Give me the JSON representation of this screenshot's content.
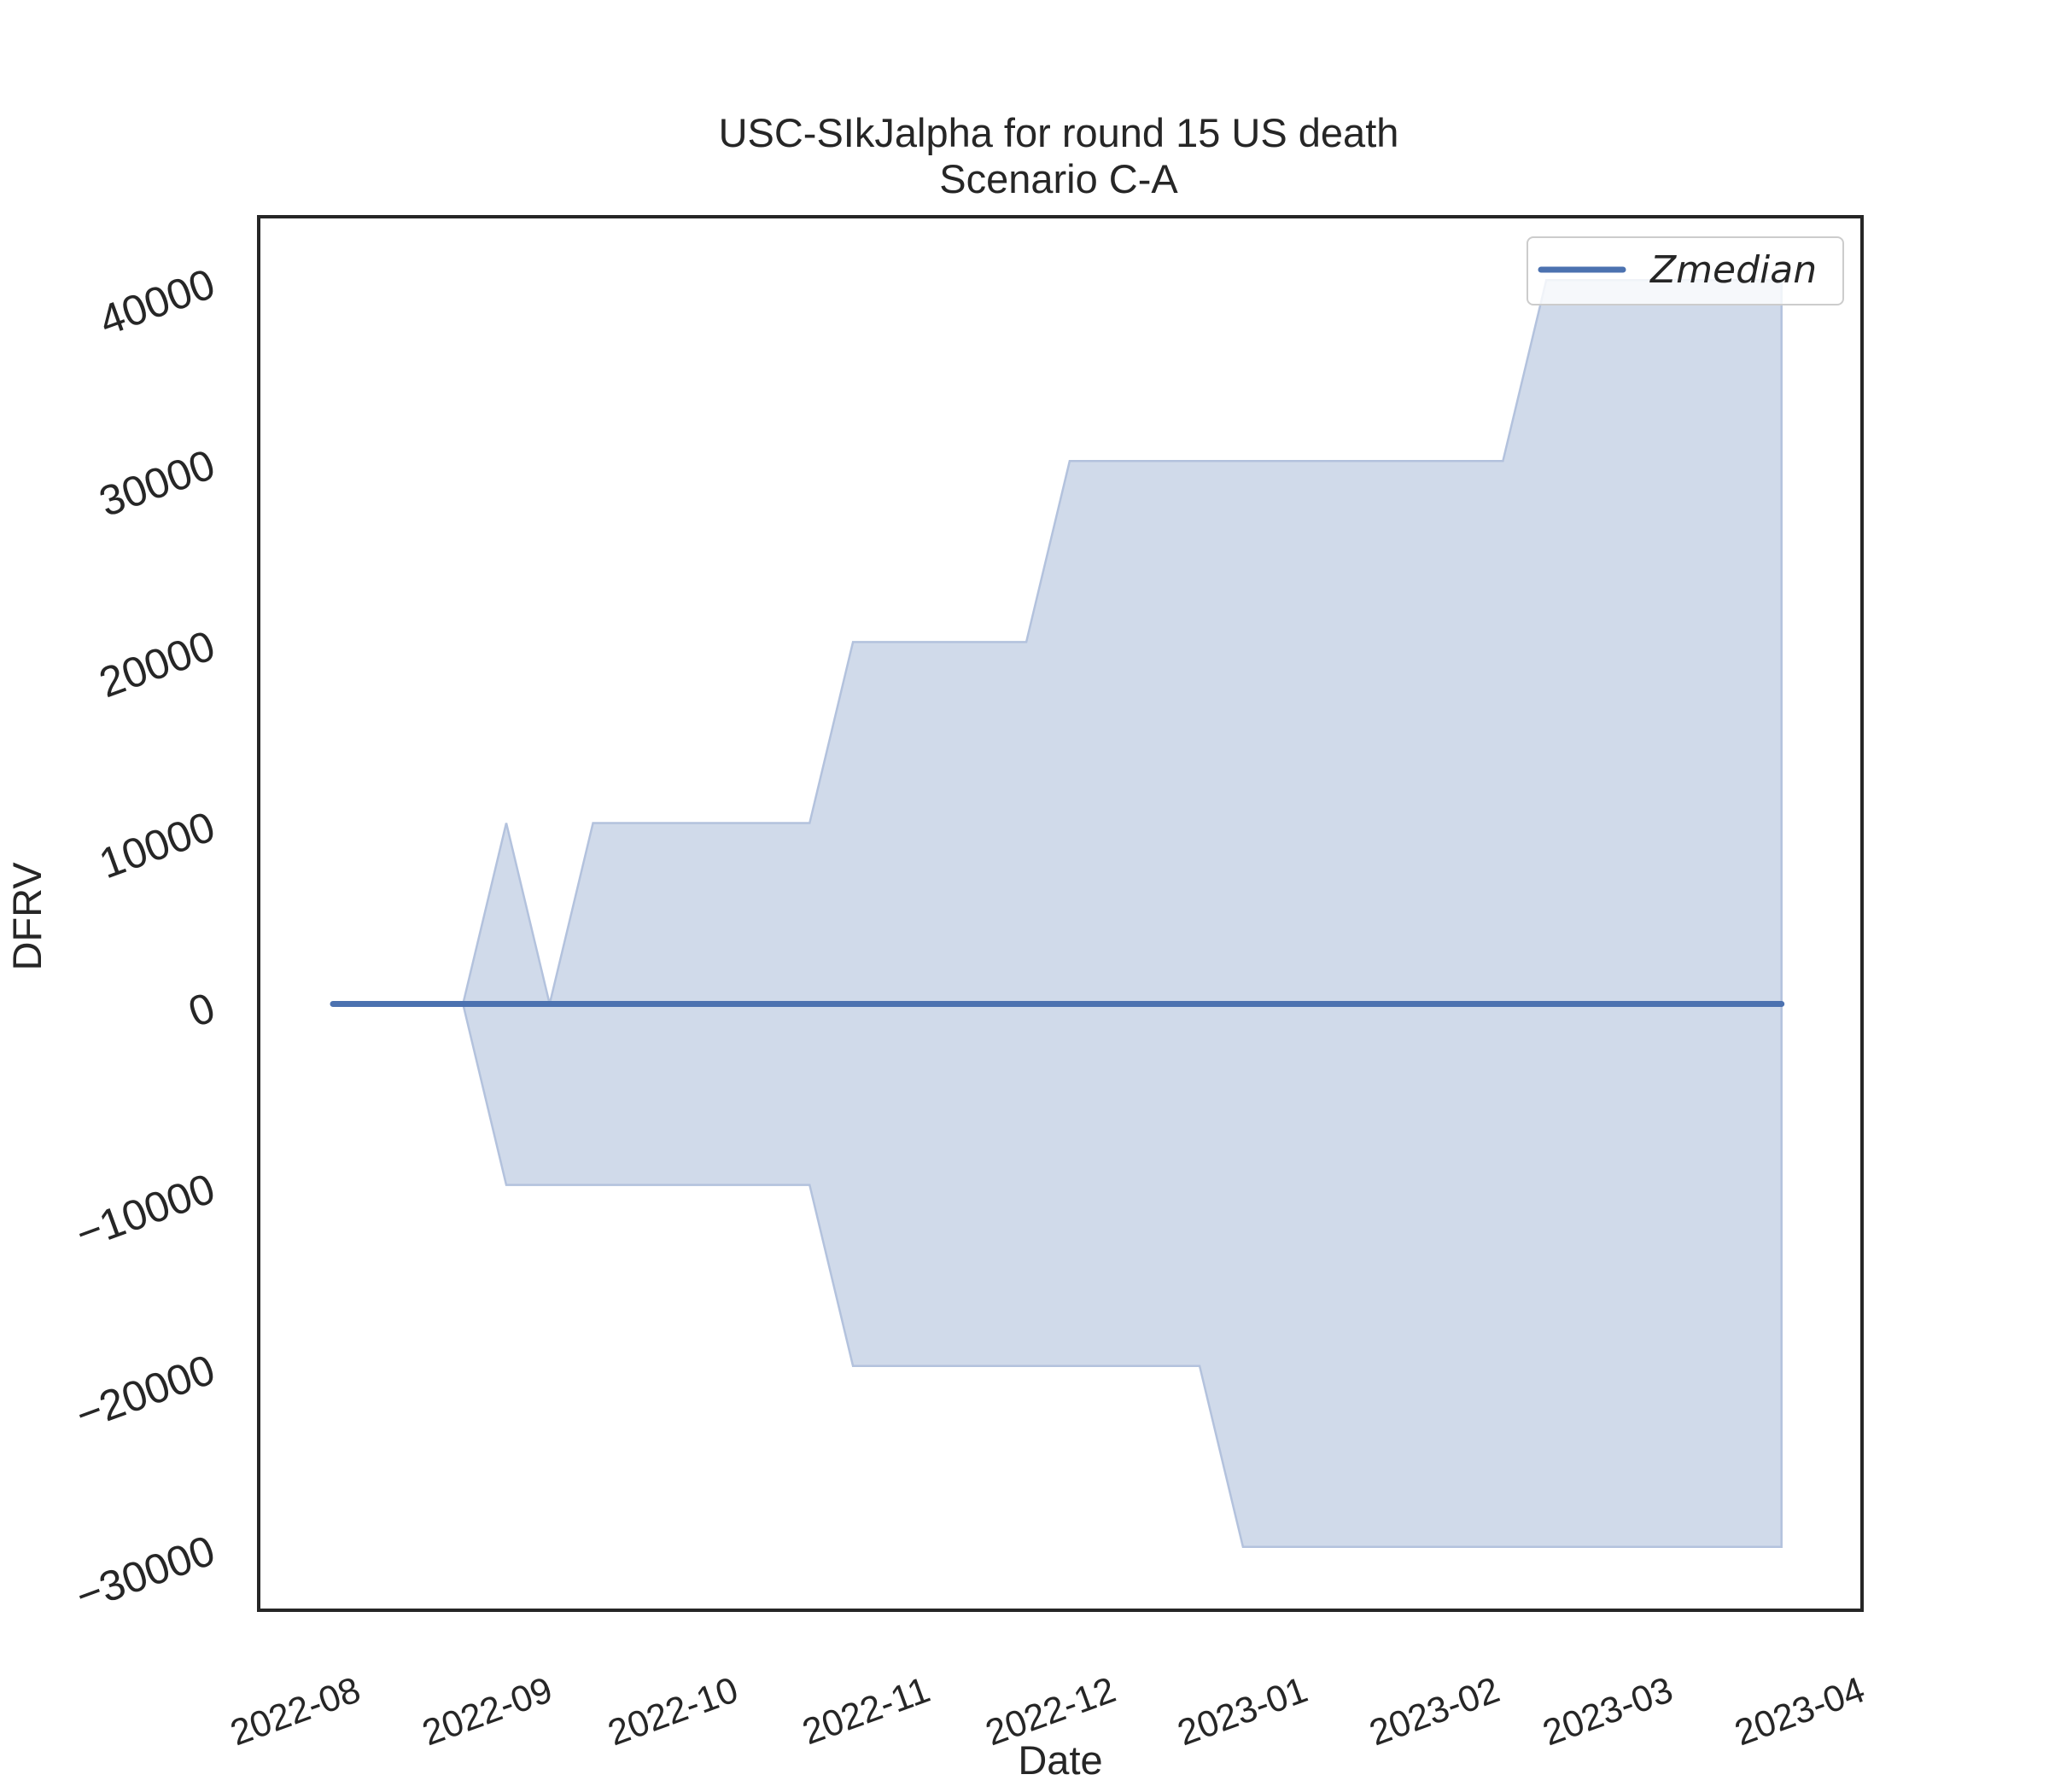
{
  "chart_data": {
    "type": "area",
    "title": "USC-SIkJalpha for round 15 US death",
    "subtitle": "Scenario C-A",
    "xlabel": "Date",
    "ylabel": "DFRV",
    "x_axis_type": "date",
    "xlim": [
      "2022-07-16",
      "2023-04-01"
    ],
    "ylim": [
      -33500,
      43500
    ],
    "x_ticks": [
      "2022-08-01",
      "2022-09-01",
      "2022-10-01",
      "2022-11-01",
      "2022-12-01",
      "2023-01-01",
      "2023-02-01",
      "2023-03-01",
      "2023-04-01"
    ],
    "x_tick_labels": [
      "2022-08",
      "2022-09",
      "2022-10",
      "2022-11",
      "2022-12",
      "2023-01",
      "2023-02",
      "2023-03",
      "2023-04"
    ],
    "y_ticks": [
      -30000,
      -20000,
      -10000,
      0,
      10000,
      20000,
      30000,
      40000
    ],
    "y_tick_labels": [
      "−30000",
      "−20000",
      "−10000",
      "0",
      "10000",
      "20000",
      "30000",
      "40000"
    ],
    "grid": false,
    "legend": {
      "placement": "top-right",
      "entries": [
        "Zmedian"
      ]
    },
    "colors": {
      "median_line": "#4c72b0",
      "band_fill": "#d0daea",
      "band_edge": "#b3c2dd",
      "frame": "#262626"
    },
    "series": [
      {
        "name": "Zmedian",
        "kind": "line",
        "points": [
          {
            "x": "2022-07-28",
            "y": 0
          },
          {
            "x": "2023-03-19",
            "y": 0
          }
        ]
      },
      {
        "kind": "band",
        "upper": [
          {
            "x": "2022-08-18",
            "y": 0
          },
          {
            "x": "2022-08-25",
            "y": 10000
          },
          {
            "x": "2022-09-01",
            "y": 0
          },
          {
            "x": "2022-09-08",
            "y": 10000
          },
          {
            "x": "2022-10-13",
            "y": 10000
          },
          {
            "x": "2022-10-20",
            "y": 20000
          },
          {
            "x": "2022-11-17",
            "y": 20000
          },
          {
            "x": "2022-11-24",
            "y": 30000
          },
          {
            "x": "2023-02-02",
            "y": 30000
          },
          {
            "x": "2023-02-09",
            "y": 40000
          },
          {
            "x": "2023-03-19",
            "y": 40000
          }
        ],
        "lower": [
          {
            "x": "2022-08-18",
            "y": 0
          },
          {
            "x": "2022-08-25",
            "y": -10000
          },
          {
            "x": "2022-10-13",
            "y": -10000
          },
          {
            "x": "2022-10-20",
            "y": -20000
          },
          {
            "x": "2022-12-15",
            "y": -20000
          },
          {
            "x": "2022-12-22",
            "y": -30000
          },
          {
            "x": "2023-03-19",
            "y": -30000
          }
        ]
      }
    ]
  }
}
